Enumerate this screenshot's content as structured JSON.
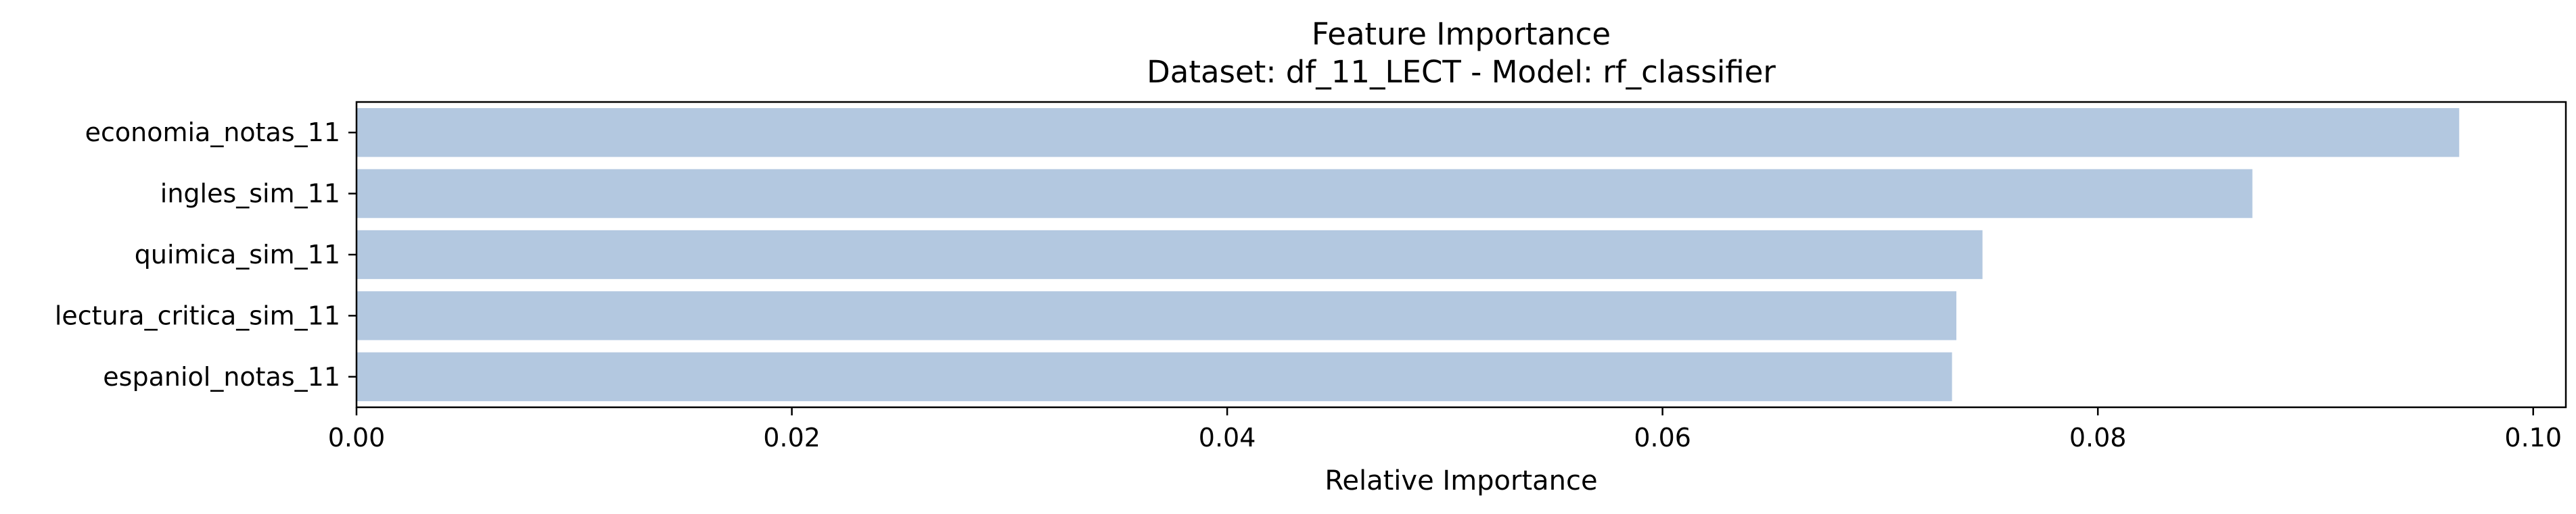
{
  "chart_data": {
    "type": "bar",
    "orientation": "horizontal",
    "title": "Feature Importance",
    "subtitle": "Dataset: df_11_LECT  -  Model: rf_classifier",
    "xlabel": "Relative Importance",
    "ylabel": "",
    "categories": [
      "economia_notas_11",
      "ingles_sim_11",
      "quimica_sim_11",
      "lectura_critica_sim_11",
      "espaniol_notas_11"
    ],
    "values": [
      0.0966,
      0.0871,
      0.0747,
      0.0735,
      0.0733
    ],
    "xlim": [
      0.0,
      0.1015
    ],
    "xticks": [
      0.0,
      0.02,
      0.04,
      0.06,
      0.08,
      0.1
    ],
    "xtick_labels": [
      "0.00",
      "0.02",
      "0.04",
      "0.06",
      "0.08",
      "0.10"
    ],
    "bar_color": "#b3c8e0",
    "grid": false,
    "legend": "none"
  }
}
